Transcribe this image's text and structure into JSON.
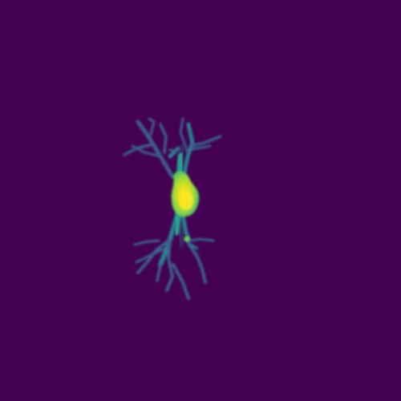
{
  "image": {
    "subject": "neuron-projection",
    "colormap": "viridis",
    "colors": {
      "background": "#440154",
      "dendrite_dim": "#3b5f8c",
      "dendrite_mid": "#2a7f8e",
      "dendrite_bright": "#25a18e",
      "soma_edge": "#35b779",
      "soma_mid": "#90d743",
      "soma_core": "#d8e219",
      "soma_peak": "#fde725"
    }
  }
}
